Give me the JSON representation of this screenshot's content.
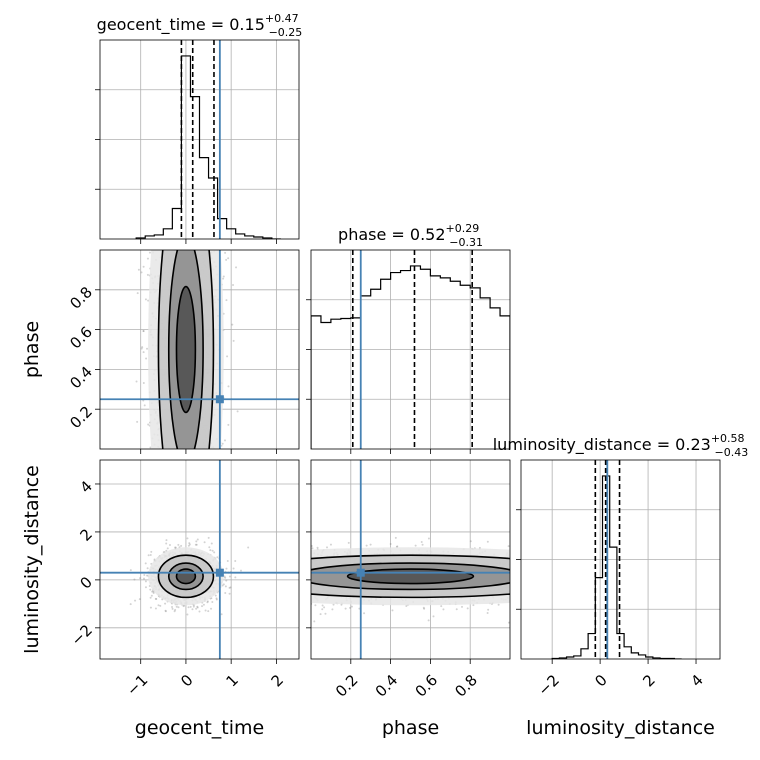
{
  "chart_data": {
    "type": "corner",
    "parameters": [
      "geocent_time",
      "phase",
      "luminosity_distance"
    ],
    "axis_labels": [
      "geocent_time",
      "phase",
      "luminosity_distance"
    ],
    "grid": true,
    "colors": {
      "truth": "#4682b4",
      "hist": "#000000",
      "grid": "#b0b0b0",
      "scatter": "#808080"
    },
    "truths": {
      "geocent_time": 0.75,
      "phase": 0.25,
      "luminosity_distance": 0.3
    },
    "axes": {
      "geocent_time": {
        "range": [
          -1.9,
          2.5
        ],
        "ticks": [
          -1,
          0,
          1,
          2
        ],
        "tick_labels": [
          "−1",
          "0",
          "1",
          "2"
        ]
      },
      "phase": {
        "range": [
          0.0,
          1.0
        ],
        "ticks": [
          0.2,
          0.4,
          0.6,
          0.8
        ],
        "tick_labels": [
          "0.2",
          "0.4",
          "0.6",
          "0.8"
        ]
      },
      "luminosity_distance": {
        "range": [
          -3.3,
          5.0
        ],
        "ticks": [
          -2,
          0,
          2,
          4
        ],
        "tick_labels": [
          "−2",
          "0",
          "2",
          "4"
        ]
      }
    },
    "marginal_titles": [
      {
        "param": "geocent_time",
        "name": "geocent_time",
        "median": "0.15",
        "plus": "+0.47",
        "minus": "−0.25"
      },
      {
        "param": "phase",
        "name": "phase",
        "median": "0.52",
        "plus": "+0.29",
        "minus": "−0.31"
      },
      {
        "param": "luminosity_distance",
        "name": "luminosity_distance",
        "median": "0.23",
        "plus": "+0.58",
        "minus": "−0.43"
      }
    ],
    "quantiles": {
      "geocent_time": [
        -0.1,
        0.15,
        0.62
      ],
      "phase": [
        0.21,
        0.52,
        0.81
      ],
      "luminosity_distance": [
        -0.2,
        0.23,
        0.81
      ]
    },
    "histograms": {
      "geocent_time": {
        "edges": [
          -1.1,
          -0.9,
          -0.7,
          -0.5,
          -0.3,
          -0.1,
          0.1,
          0.3,
          0.5,
          0.7,
          0.9,
          1.1,
          1.3,
          1.5,
          1.7,
          1.9,
          2.1
        ],
        "counts": [
          1,
          3,
          4,
          10,
          30,
          180,
          140,
          80,
          60,
          20,
          10,
          5,
          3,
          2,
          1,
          0
        ]
      },
      "phase": {
        "edges": [
          0.0,
          0.05,
          0.1,
          0.15,
          0.2,
          0.25,
          0.3,
          0.35,
          0.4,
          0.45,
          0.5,
          0.55,
          0.6,
          0.65,
          0.7,
          0.75,
          0.8,
          0.85,
          0.9,
          0.95,
          1.0
        ],
        "counts": [
          200,
          190,
          195,
          196,
          197,
          230,
          240,
          255,
          265,
          268,
          275,
          270,
          260,
          257,
          252,
          246,
          242,
          227,
          212,
          200
        ]
      },
      "luminosity_distance": {
        "edges": [
          -2.0,
          -1.7,
          -1.4,
          -1.1,
          -0.8,
          -0.5,
          -0.2,
          0.1,
          0.4,
          0.7,
          1.0,
          1.3,
          1.6,
          1.9,
          2.2,
          2.5,
          2.8,
          3.1,
          3.4
        ],
        "counts": [
          0.5,
          1,
          2,
          3,
          10,
          25,
          80,
          180,
          110,
          25,
          12,
          6,
          4,
          2,
          1,
          0.5,
          0.5,
          0
        ]
      }
    },
    "centers": {
      "geocent_time": 0.0,
      "phase": 0.5,
      "luminosity_distance": 0.15
    }
  }
}
